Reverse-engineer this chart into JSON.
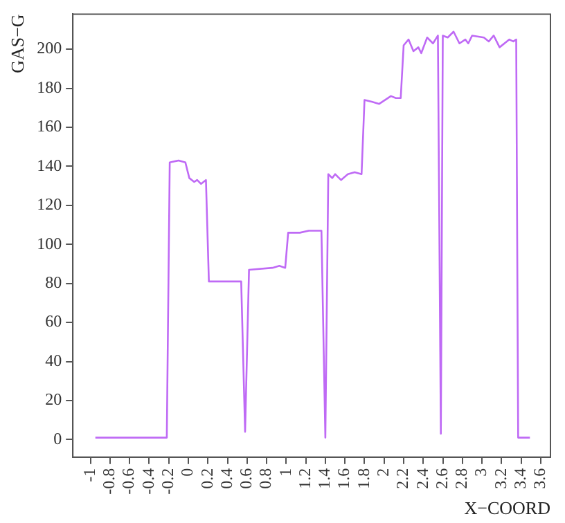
{
  "chart_data": {
    "type": "line",
    "xlabel": "X−COORD",
    "ylabel": "GAS−G",
    "xlim": [
      -1.18,
      3.7
    ],
    "ylim": [
      -9,
      218
    ],
    "xticks": [
      -1,
      -0.8,
      -0.6,
      -0.4,
      -0.2,
      0,
      0.2,
      0.4,
      0.6,
      0.8,
      1,
      1.2,
      1.4,
      1.6,
      1.8,
      2,
      2.2,
      2.4,
      2.6,
      2.8,
      3,
      3.2,
      3.4,
      3.6
    ],
    "yticks": [
      0,
      20,
      40,
      60,
      80,
      100,
      120,
      140,
      160,
      180,
      200
    ],
    "grid": false,
    "legend": false,
    "marker": "none",
    "line_style": "solid",
    "series": [
      {
        "color": "#bf6af5",
        "x": [
          -0.95,
          -0.22,
          -0.19,
          -0.1,
          -0.03,
          0.01,
          0.06,
          0.09,
          0.13,
          0.18,
          0.21,
          0.4,
          0.54,
          0.58,
          0.62,
          0.86,
          0.93,
          0.99,
          1.02,
          1.14,
          1.23,
          1.36,
          1.4,
          1.43,
          1.47,
          1.5,
          1.56,
          1.63,
          1.7,
          1.77,
          1.8,
          1.88,
          1.95,
          2.07,
          2.12,
          2.17,
          2.2,
          2.25,
          2.3,
          2.35,
          2.38,
          2.44,
          2.5,
          2.55,
          2.58,
          2.6,
          2.65,
          2.71,
          2.77,
          2.83,
          2.86,
          2.9,
          3.02,
          3.07,
          3.12,
          3.18,
          3.28,
          3.32,
          3.35,
          3.37,
          3.49
        ],
        "values": [
          1,
          1,
          142,
          143,
          142,
          134,
          132,
          133,
          131,
          133,
          81,
          81,
          81,
          4,
          87,
          88,
          89,
          88,
          106,
          106,
          107,
          107,
          1,
          136,
          134,
          136,
          133,
          136,
          137,
          136,
          174,
          173,
          172,
          176,
          175,
          175,
          202,
          205,
          199,
          201,
          198,
          206,
          203,
          207,
          3,
          207,
          206,
          209,
          203,
          205,
          203,
          207,
          206,
          204,
          207,
          201,
          205,
          204,
          205,
          1,
          1
        ]
      }
    ]
  }
}
